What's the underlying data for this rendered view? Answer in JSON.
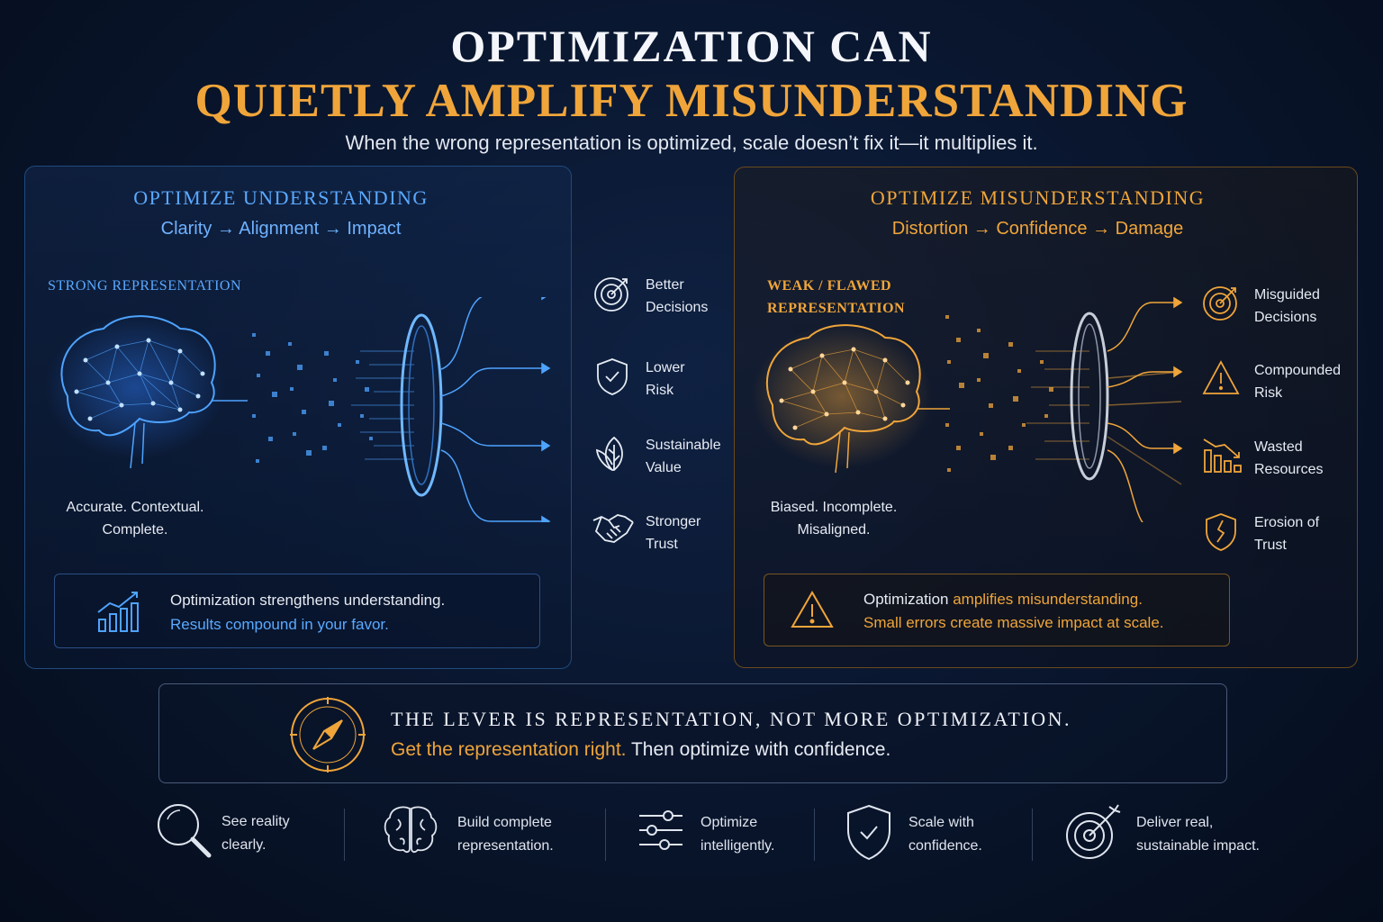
{
  "title": {
    "line1": "OPTIMIZATION CAN",
    "line2": "QUIETLY AMPLIFY MISUNDERSTANDING",
    "subtitle": "When the wrong representation is optimized, scale doesn’t fix it—it multiplies it."
  },
  "left_panel": {
    "title": "OPTIMIZE UNDERSTANDING",
    "flow": "Clarity → Alignment → Impact",
    "rep_label": "STRONG REPRESENTATION",
    "desc_line1": "Accurate. Contextual.",
    "desc_line2": "Complete.",
    "outcomes": [
      {
        "line1": "Better",
        "line2": "Decisions",
        "icon": "target-icon"
      },
      {
        "line1": "Lower",
        "line2": "Risk",
        "icon": "shield-check-icon"
      },
      {
        "line1": "Sustainable",
        "line2": "Value",
        "icon": "leaf-icon"
      },
      {
        "line1": "Stronger",
        "line2": "Trust",
        "icon": "handshake-icon"
      }
    ],
    "callout_line1": "Optimization strengthens understanding.",
    "callout_line2": "Results compound in your favor.",
    "accent": "#4ea3ff"
  },
  "right_panel": {
    "title": "OPTIMIZE MISUNDERSTANDING",
    "flow": "Distortion → Confidence → Damage",
    "rep_label_line1": "WEAK / FLAWED",
    "rep_label_line2": "REPRESENTATION",
    "desc_line1": "Biased. Incomplete.",
    "desc_line2": "Misaligned.",
    "outcomes": [
      {
        "line1": "Misguided",
        "line2": "Decisions",
        "icon": "target-icon"
      },
      {
        "line1": "Compounded",
        "line2": "Risk",
        "icon": "warning-icon"
      },
      {
        "line1": "Wasted",
        "line2": "Resources",
        "icon": "declining-chart-icon"
      },
      {
        "line1": "Erosion of",
        "line2": "Trust",
        "icon": "broken-shield-icon"
      }
    ],
    "callout_pre": "Optimization ",
    "callout_highlight": "amplifies misunderstanding.",
    "callout_line2": "Small errors create massive impact at scale.",
    "accent": "#f0a53a"
  },
  "lever": {
    "title": "THE LEVER IS REPRESENTATION, NOT MORE OPTIMIZATION.",
    "highlight": "Get the representation right.",
    "rest": " Then optimize with confidence."
  },
  "footer": [
    {
      "line1": "See reality",
      "line2": "clearly.",
      "icon": "magnifier-icon"
    },
    {
      "line1": "Build complete",
      "line2": "representation.",
      "icon": "brain-icon"
    },
    {
      "line1": "Optimize",
      "line2": "intelligently.",
      "icon": "sliders-icon"
    },
    {
      "line1": "Scale with",
      "line2": "confidence.",
      "icon": "shield-check-icon"
    },
    {
      "line1": "Deliver real,",
      "line2": "sustainable impact.",
      "icon": "target-icon"
    }
  ]
}
